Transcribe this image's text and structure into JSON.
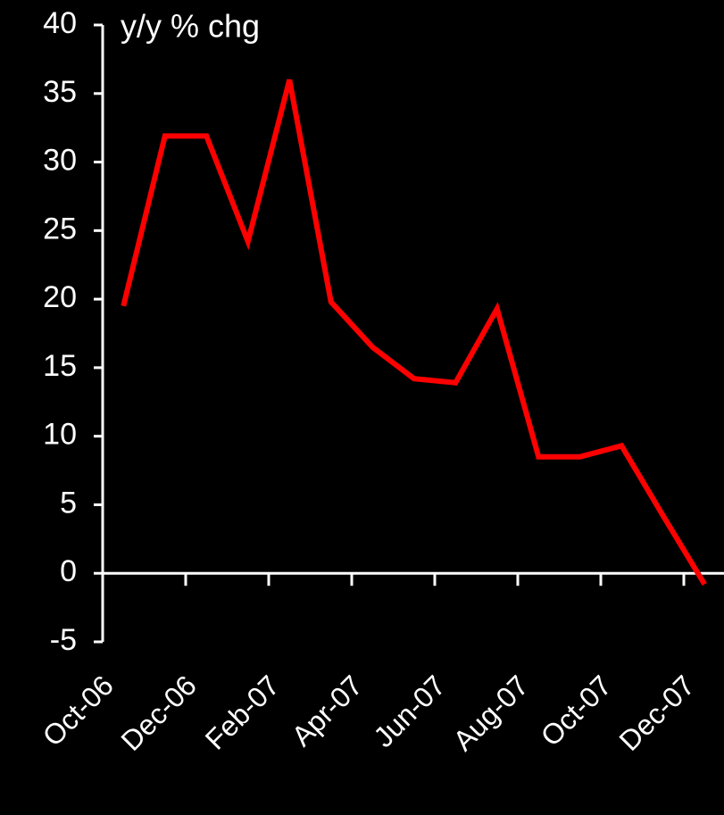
{
  "chart_data": {
    "type": "line",
    "y_axis_label": "y/y % chg",
    "categories": [
      "Oct-06",
      null,
      "Dec-06",
      null,
      "Feb-07",
      null,
      "Apr-07",
      null,
      "Jun-07",
      null,
      "Aug-07",
      null,
      "Oct-07",
      null,
      "Dec-07"
    ],
    "series": [
      {
        "color": "#ff0000",
        "values": [
          19.5,
          31.9,
          31.9,
          24.2,
          36.0,
          19.8,
          16.5,
          14.2,
          13.9,
          19.3,
          8.5,
          8.5,
          9.3,
          4.2,
          -0.8
        ]
      }
    ],
    "ylim": [
      -5,
      40
    ],
    "yticks": [
      -5,
      0,
      5,
      10,
      15,
      20,
      25,
      30,
      35,
      40
    ]
  }
}
